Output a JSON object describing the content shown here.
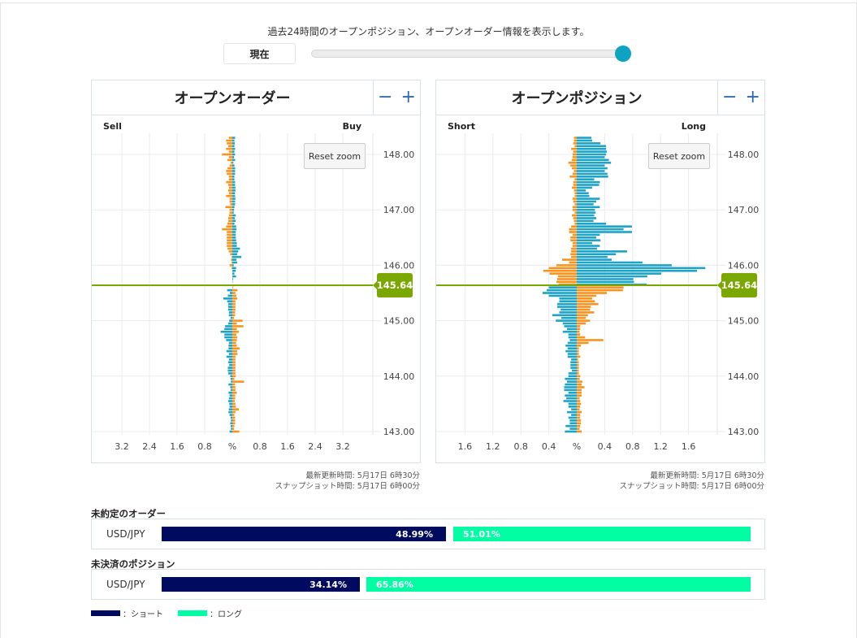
{
  "intro_text": "過去24時間のオープンポジション、オープンオーダー情報を表示します。",
  "now_button": "現在",
  "time_slider": {
    "position_pct": 100
  },
  "current_price": "145.64",
  "colors": {
    "blue": "#1ea3c6",
    "orange": "#f7931e",
    "current_line": "#7aa800",
    "short": "#000a5f",
    "long": "#00ffa2"
  },
  "reset_zoom": "Reset zoom",
  "zoom_out": "−",
  "zoom_in": "+",
  "chart_data": [
    {
      "type": "bar",
      "title": "オープンオーダー",
      "left_label": "Sell",
      "right_label": "Buy",
      "ylim": [
        143.0,
        148.3
      ],
      "price_top": 148.3,
      "price_step": 0.05,
      "y_ticks": [
        "148.00",
        "147.00",
        "146.00",
        "145.00",
        "144.00",
        "143.00"
      ],
      "x_ticks": [
        "3.2",
        "2.4",
        "1.6",
        "0.8",
        "%",
        "0.8",
        "1.6",
        "2.4",
        "3.2"
      ],
      "x_max": 3.6,
      "current": 145.64,
      "above_left": [
        0.1,
        0.18,
        0.16,
        0.12,
        0.18,
        0.1,
        0.3,
        0.1,
        0.14,
        0.05,
        0.08,
        0.14,
        0.18,
        0.16,
        0.1,
        0.1,
        0.18,
        0.12,
        0.1,
        0.12,
        0.1,
        0.18,
        0.08,
        0.08,
        0.06,
        0.2,
        0.08,
        0.08,
        0.1,
        0.12,
        0.12,
        0.14,
        0.18,
        0.3,
        0.16,
        0.16,
        0.16,
        0.16,
        0.16,
        0.16,
        0.14,
        0.1,
        0.06,
        0.02,
        0.04,
        0.02,
        0.08,
        0.02,
        0,
        0,
        0,
        0,
        0,
        0
      ],
      "above_right": [
        0.08,
        0.06,
        0.07,
        0.06,
        0.08,
        0.06,
        0.08,
        0.05,
        0.08,
        0.03,
        0.06,
        0.08,
        0.08,
        0.08,
        0.06,
        0.06,
        0.08,
        0.08,
        0.09,
        0.09,
        0.08,
        0.08,
        0.09,
        0.08,
        0.08,
        0.06,
        0.05,
        0.04,
        0.1,
        0.07,
        0.1,
        0.06,
        0.11,
        0.12,
        0.1,
        0.1,
        0.1,
        0.11,
        0.13,
        0.13,
        0.22,
        0.17,
        0.14,
        0.26,
        0.12,
        0.14,
        0.04,
        0.11,
        0.1,
        0.06,
        0.11,
        0.02,
        0.01,
        0
      ],
      "below_left": [
        0,
        0.15,
        0.07,
        0.13,
        0.26,
        0.15,
        0.12,
        0.12,
        0.12,
        0.1,
        0.1,
        0.05,
        0.09,
        0.12,
        0.21,
        0.23,
        0.34,
        0.23,
        0.23,
        0.18,
        0.1,
        0.11,
        0.11,
        0.17,
        0.1,
        0.17,
        0.1,
        0.12,
        0.09,
        0.13,
        0.13,
        0.12,
        0.06,
        0.05,
        0.04,
        0.11,
        0.06,
        0.05,
        0.11,
        0.08,
        0.1,
        0.12,
        0.09,
        0.08,
        0.1,
        0.11,
        0.08,
        0.05,
        0.04,
        0.06,
        0.05,
        0.04,
        0.08
      ],
      "below_right": [
        0.02,
        0.15,
        0.09,
        0.12,
        0.14,
        0.09,
        0.09,
        0.09,
        0.09,
        0.08,
        0.08,
        0.05,
        0.3,
        0.13,
        0.32,
        0.13,
        0.19,
        0.12,
        0.14,
        0.13,
        0.11,
        0.13,
        0.21,
        0.14,
        0.15,
        0.09,
        0.09,
        0.09,
        0.09,
        0.09,
        0.09,
        0.09,
        0.1,
        0.06,
        0.34,
        0.08,
        0.09,
        0.09,
        0.13,
        0.08,
        0.08,
        0.07,
        0.09,
        0.1,
        0.19,
        0.09,
        0.06,
        0.08,
        0.08,
        0.08,
        0.06,
        0.05,
        0.2
      ],
      "updated": "最新更新時間: 5月17日 6時30分",
      "snapshot": "スナップショット時間: 5月17日 6時00分"
    },
    {
      "type": "bar",
      "title": "オープンポジション",
      "left_label": "Short",
      "right_label": "Long",
      "ylim": [
        143.0,
        148.3
      ],
      "price_top": 148.3,
      "price_step": 0.05,
      "y_ticks": [
        "148.00",
        "147.00",
        "146.00",
        "145.00",
        "144.00",
        "143.00"
      ],
      "x_ticks": [
        "1.6",
        "1.2",
        "0.8",
        "0.4",
        "%",
        "0.4",
        "0.8",
        "1.2",
        "1.6"
      ],
      "x_max": 2.0,
      "current": 145.64,
      "above_left": [
        0.04,
        0.04,
        0.05,
        0.03,
        0.08,
        0.05,
        0.06,
        0.06,
        0.07,
        0.12,
        0.09,
        0.07,
        0.04,
        0.06,
        0.1,
        0.03,
        0.05,
        0.05,
        0.07,
        0.04,
        0.03,
        0.03,
        0.06,
        0.05,
        0.03,
        0.06,
        0.06,
        0.03,
        0.07,
        0.05,
        0.04,
        0.03,
        0.08,
        0.11,
        0.11,
        0.06,
        0.09,
        0.09,
        0.06,
        0.06,
        0.08,
        0.08,
        0.09,
        0.08,
        0.21,
        0.11,
        0.29,
        0.4,
        0.48,
        0.39,
        0.27,
        0.28,
        0.29,
        0.26
      ],
      "above_right": [
        0.21,
        0.22,
        0.34,
        0.42,
        0.42,
        0.43,
        0.42,
        0.4,
        0.46,
        0.49,
        0.4,
        0.44,
        0.4,
        0.44,
        0.45,
        0.25,
        0.33,
        0.32,
        0.22,
        0.13,
        0.17,
        0.18,
        0.33,
        0.28,
        0.24,
        0.33,
        0.26,
        0.27,
        0.25,
        0.28,
        0.24,
        0.42,
        0.79,
        0.67,
        0.79,
        0.33,
        0.28,
        0.34,
        0.22,
        0.33,
        0.29,
        0.72,
        0.56,
        0.44,
        0.5,
        0.94,
        1.36,
        1.84,
        1.72,
        1.21,
        1.01,
        0.81,
        0.82,
        1.0
      ],
      "below_left": [
        0.4,
        0.43,
        0.49,
        0.4,
        0.25,
        0.25,
        0.28,
        0.28,
        0.23,
        0.25,
        0.35,
        0.22,
        0.3,
        0.2,
        0.18,
        0.14,
        0.2,
        0.12,
        0.12,
        0.1,
        0.13,
        0.16,
        0.13,
        0.16,
        0.13,
        0.13,
        0.08,
        0.09,
        0.09,
        0.09,
        0.07,
        0.12,
        0.12,
        0.17,
        0.14,
        0.17,
        0.18,
        0.18,
        0.12,
        0.17,
        0.15,
        0.19,
        0.12,
        0.12,
        0.08,
        0.14,
        0.08,
        0.12,
        0.1,
        0.1,
        0.16,
        0.1,
        0.17
      ],
      "below_right": [
        0.67,
        0.66,
        0.43,
        0.28,
        0.22,
        0.26,
        0.31,
        0.2,
        0.19,
        0.25,
        0.16,
        0.13,
        0.19,
        0.13,
        0.05,
        0.05,
        0.04,
        0.05,
        0.12,
        0.38,
        0.17,
        0.06,
        0.03,
        0.03,
        0.03,
        0.05,
        0.02,
        0.03,
        0.03,
        0.03,
        0.03,
        0.03,
        0.05,
        0.04,
        0.08,
        0.07,
        0.11,
        0.07,
        0.07,
        0.07,
        0.04,
        0.05,
        0.06,
        0.05,
        0.04,
        0.07,
        0.05,
        0.05,
        0.06,
        0.06,
        0.05,
        0.04,
        0.07
      ],
      "updated": "最新更新時間: 5月17日 6時30分",
      "snapshot": "スナップショット時間: 5月17日 6時00分"
    }
  ],
  "summary": {
    "orders": {
      "title": "未約定のオーダー",
      "pair": "USD/JPY",
      "short_pct": "48.99%",
      "long_pct": "51.01%",
      "short": 48.99,
      "long": 51.01
    },
    "positions": {
      "title": "未決済のポジション",
      "pair": "USD/JPY",
      "short_pct": "34.14%",
      "long_pct": "65.86%",
      "short": 34.14,
      "long": 65.86
    },
    "legend": {
      "short": "：ショート",
      "long": "：ロング"
    }
  }
}
